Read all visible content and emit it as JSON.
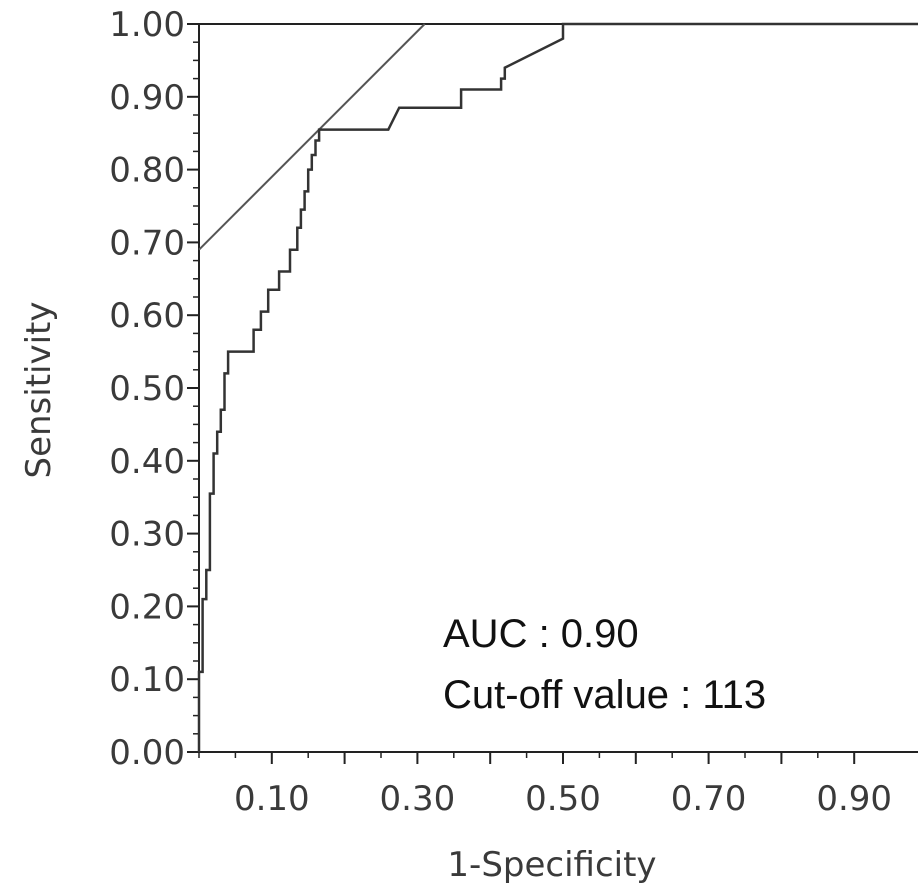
{
  "chart_data": {
    "type": "line",
    "xlabel": "1-Specificity",
    "ylabel": "Sensitivity",
    "xlim": [
      0,
      1
    ],
    "ylim": [
      0,
      1
    ],
    "grid": false,
    "x_tick_labels": [
      "0.10",
      "0.30",
      "0.50",
      "0.70",
      "0.90"
    ],
    "x_tick_values": [
      0.1,
      0.3,
      0.5,
      0.7,
      0.9
    ],
    "y_tick_labels": [
      "0.00",
      "0.10",
      "0.20",
      "0.30",
      "0.40",
      "0.50",
      "0.60",
      "0.70",
      "0.80",
      "0.90",
      "1.00"
    ],
    "y_tick_values": [
      0,
      0.1,
      0.2,
      0.3,
      0.4,
      0.5,
      0.6,
      0.7,
      0.8,
      0.9,
      1.0
    ],
    "annotations": [
      "AUC : 0.90",
      "Cut-off value : 113"
    ],
    "roc_curve": {
      "x": [
        0,
        0,
        0.005,
        0.005,
        0.01,
        0.01,
        0.015,
        0.015,
        0.02,
        0.02,
        0.025,
        0.025,
        0.03,
        0.03,
        0.035,
        0.035,
        0.04,
        0.04,
        0.05,
        0.05,
        0.075,
        0.075,
        0.085,
        0.085,
        0.095,
        0.095,
        0.11,
        0.11,
        0.125,
        0.125,
        0.135,
        0.135,
        0.14,
        0.14,
        0.145,
        0.145,
        0.15,
        0.15,
        0.155,
        0.155,
        0.16,
        0.16,
        0.165,
        0.165,
        0.26,
        0.275,
        0.36,
        0.36,
        0.415,
        0.415,
        0.42,
        0.42,
        0.5,
        0.5,
        1.0
      ],
      "y": [
        0,
        0.11,
        0.11,
        0.21,
        0.21,
        0.25,
        0.25,
        0.355,
        0.355,
        0.41,
        0.41,
        0.44,
        0.44,
        0.47,
        0.47,
        0.52,
        0.52,
        0.55,
        0.55,
        0.55,
        0.55,
        0.58,
        0.58,
        0.605,
        0.605,
        0.635,
        0.635,
        0.66,
        0.66,
        0.69,
        0.69,
        0.72,
        0.72,
        0.745,
        0.745,
        0.77,
        0.77,
        0.8,
        0.8,
        0.82,
        0.82,
        0.84,
        0.84,
        0.855,
        0.855,
        0.885,
        0.885,
        0.91,
        0.91,
        0.925,
        0.925,
        0.94,
        0.98,
        1.0,
        1.0
      ]
    },
    "cutoff_line": {
      "x": [
        0,
        0.31
      ],
      "y": [
        0.69,
        1.0
      ]
    }
  }
}
